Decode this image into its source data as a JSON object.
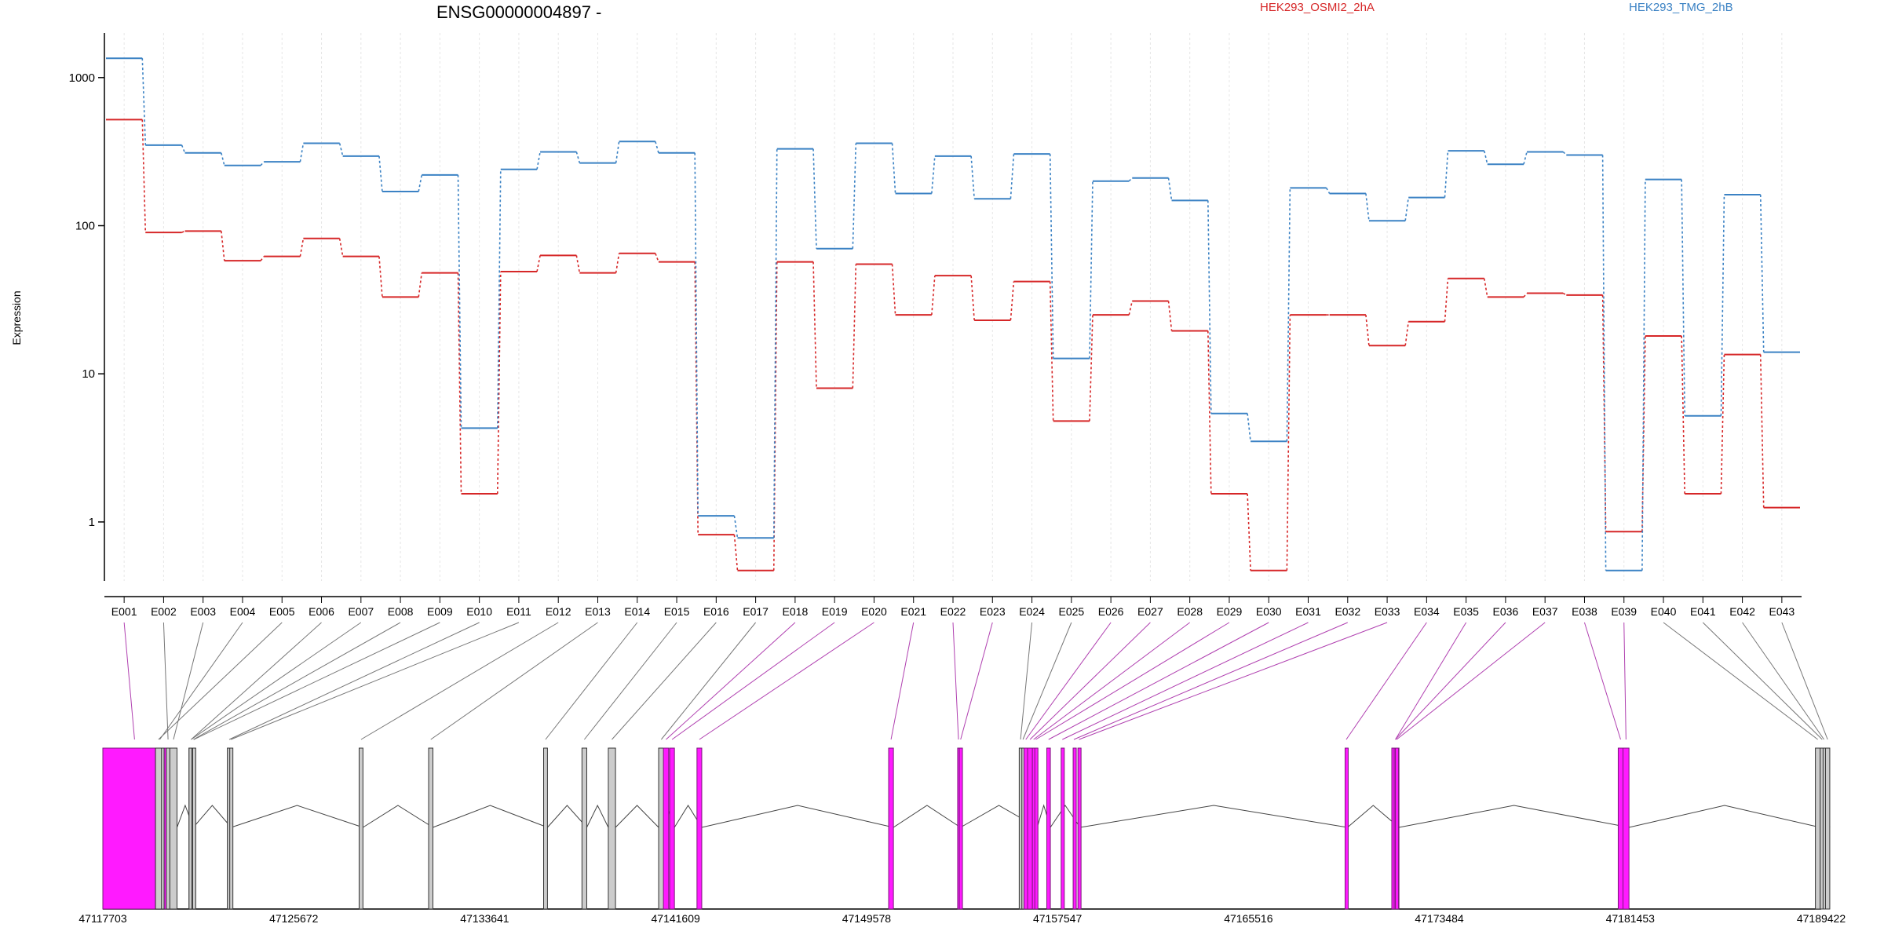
{
  "chart_data": {
    "type": "line",
    "title": "ENSG00000004897 -",
    "ylabel": "Expression",
    "yscale": "log",
    "ylim": [
      0.4,
      2000
    ],
    "yticks": [
      {
        "value": 1,
        "label": "1"
      },
      {
        "value": 10,
        "label": "10"
      },
      {
        "value": 100,
        "label": "100"
      },
      {
        "value": 1000,
        "label": "1000"
      }
    ],
    "categories": [
      "E001",
      "E002",
      "E003",
      "E004",
      "E005",
      "E006",
      "E007",
      "E008",
      "E009",
      "E010",
      "E011",
      "E012",
      "E013",
      "E014",
      "E015",
      "E016",
      "E017",
      "E018",
      "E019",
      "E020",
      "E021",
      "E022",
      "E023",
      "E024",
      "E025",
      "E026",
      "E027",
      "E028",
      "E029",
      "E030",
      "E031",
      "E032",
      "E033",
      "E034",
      "E035",
      "E036",
      "E037",
      "E038",
      "E039",
      "E040",
      "E041",
      "E042",
      "E043"
    ],
    "series": [
      {
        "name": "HEK293_OSMI2_2hA",
        "color": "#d62728",
        "values": [
          520,
          90,
          92,
          58,
          62,
          82,
          62,
          33,
          48,
          1.55,
          49,
          63,
          48,
          65,
          57,
          0.82,
          0.47,
          57,
          8,
          55,
          25,
          46,
          23,
          42,
          4.8,
          25,
          31,
          19.5,
          1.55,
          0.47,
          25,
          25,
          15.5,
          22.5,
          44,
          33,
          35,
          34,
          0.86,
          18,
          1.55,
          13.5,
          1.25
        ]
      },
      {
        "name": "HEK293_TMG_2hB",
        "color": "#3b82c4",
        "values": [
          1350,
          350,
          310,
          255,
          270,
          360,
          295,
          170,
          220,
          4.3,
          240,
          315,
          265,
          370,
          310,
          1.1,
          0.78,
          330,
          70,
          360,
          165,
          295,
          152,
          305,
          12.7,
          200,
          210,
          148,
          5.4,
          3.5,
          180,
          165,
          108,
          155,
          320,
          260,
          315,
          300,
          0.47,
          205,
          5.2,
          162,
          14
        ]
      }
    ],
    "grid": true,
    "legend_placement": "top",
    "genome_track": {
      "coord_ticks": [
        "47117703",
        "47125672",
        "47133641",
        "47141609",
        "47149578",
        "47157547",
        "47165516",
        "47173484",
        "47181453",
        "47189422"
      ],
      "exon_start": [
        47117703,
        47120350,
        47120500,
        47119900,
        47119900,
        47121300,
        47121300,
        47121420,
        47121450,
        47122900,
        47123000,
        47128400,
        47131300,
        47136100,
        47137700,
        47138800,
        47140900,
        47141100,
        47141360,
        47142500,
        47150500,
        47153380,
        47153450,
        47155950,
        47156060,
        47156150,
        47156300,
        47156500,
        47156600,
        47157100,
        47157700,
        47158200,
        47158400,
        47169550,
        47171500,
        47171600,
        47171650,
        47180950,
        47181150,
        47189180,
        47189380,
        47189500,
        47189600
      ],
      "exon_end": [
        47120350,
        47120500,
        47120800,
        47120260,
        47120150,
        47121480,
        47121480,
        47121550,
        47121550,
        47123060,
        47123100,
        47128560,
        47131480,
        47136260,
        47137900,
        47139100,
        47141120,
        47141320,
        47141560,
        47142700,
        47150700,
        47153450,
        47153560,
        47156060,
        47156150,
        47156300,
        47156500,
        47156600,
        47156680,
        47157250,
        47157800,
        47158260,
        47158490,
        47169650,
        47171800,
        47171700,
        47171750,
        47181150,
        47181400,
        47189380,
        47189550,
        47189580,
        47189780
      ],
      "exon_style": [
        "pink",
        "gray",
        "gray",
        "gray",
        "gray",
        "gray",
        "gray",
        "gray",
        "gray",
        "gray",
        "gray",
        "gray",
        "gray",
        "gray",
        "gray",
        "gray",
        "gray",
        "pink",
        "pink",
        "pink",
        "pink",
        "pink",
        "pink",
        "gray",
        "gray",
        "pink",
        "pink",
        "pink",
        "pink",
        "pink",
        "pink",
        "pink",
        "pink",
        "pink",
        "pink",
        "pink",
        "pink",
        "pink",
        "pink",
        "gray",
        "gray",
        "gray",
        "gray"
      ],
      "segment_ends": [
        47119000,
        47120500,
        47120800,
        47121480,
        47123060,
        47128560,
        47131480,
        47136260,
        47137900,
        47138800,
        47139100,
        47140900,
        47141560,
        47142700,
        47150700,
        47153500,
        47156700,
        47157250,
        47158490,
        47169650,
        47171800,
        47181400,
        47189380,
        47189780
      ],
      "colors": {
        "pink": "#ff1aff",
        "pink_stroke": "#7a1a7a",
        "gray": "#cccccc",
        "gray_stroke": "#333333",
        "link_pink": "#b040b0",
        "link_gray": "#777777"
      }
    }
  }
}
